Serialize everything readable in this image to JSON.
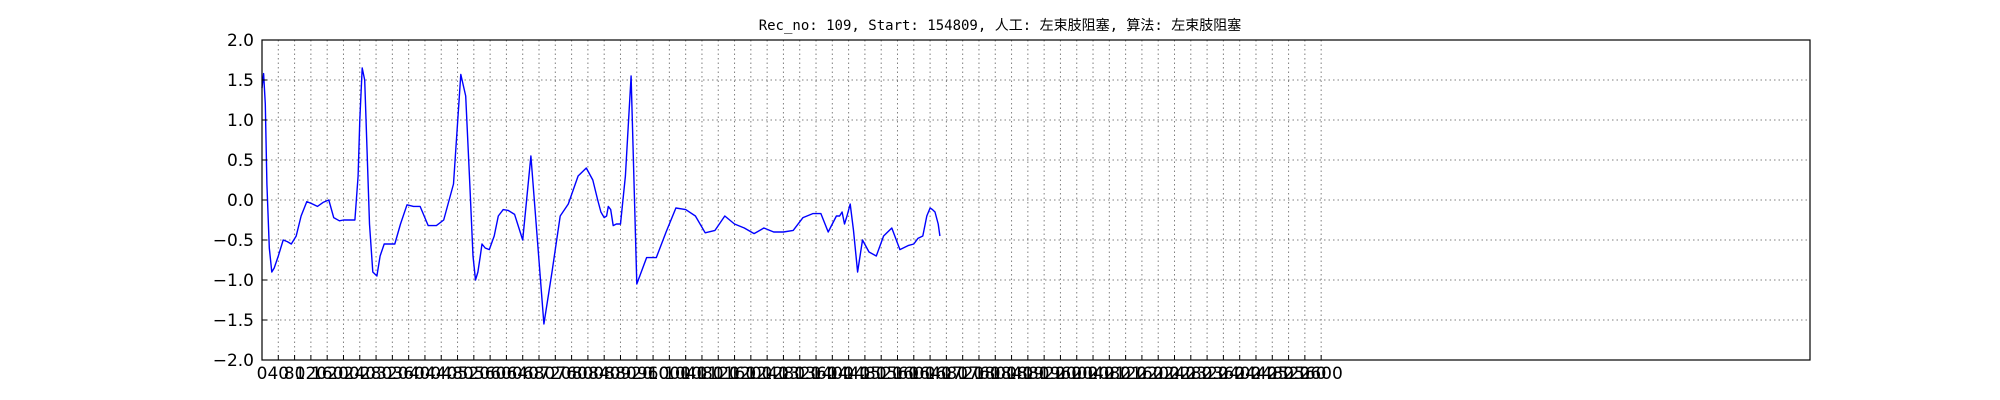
{
  "chart_data": {
    "type": "line",
    "title": "Rec_no: 109, Start: 154809, 人工: 左束肢阻塞, 算法: 左束肢阻塞",
    "xlabel": "",
    "ylabel": "",
    "xlim": [
      0,
      3800
    ],
    "ylim": [
      -2.0,
      2.0
    ],
    "yticks": [
      -2.0,
      -1.5,
      -1.0,
      -0.5,
      0.0,
      0.5,
      1.0,
      1.5,
      2.0
    ],
    "ytick_labels": [
      "−2.0",
      "−1.5",
      "−1.0",
      "−0.5",
      "0.0",
      "0.5",
      "1.0",
      "1.5",
      "2.0"
    ],
    "xticks": [
      0,
      40,
      80,
      120,
      160,
      200,
      240,
      280,
      320,
      360,
      400,
      440,
      480,
      520,
      560,
      600,
      640,
      680,
      720,
      760,
      800,
      840,
      880,
      920,
      960,
      1000,
      1040,
      1080,
      1120,
      1160,
      1200,
      1240,
      1280,
      1320,
      1360,
      1400,
      1440,
      1480,
      1520,
      1560,
      1600,
      1640,
      1680,
      1720,
      1760,
      1800,
      1840,
      1880,
      1920,
      1960,
      2000,
      2040,
      2080,
      2120,
      2160,
      2200,
      2240,
      2280,
      2320,
      2360,
      2400,
      2440,
      2480,
      2520,
      2560,
      2600
    ],
    "xtick_labels": [
      "0",
      "40",
      "80",
      "120",
      "160",
      "200",
      "240",
      "280",
      "320",
      "360",
      "400",
      "440",
      "480",
      "520",
      "560",
      "600",
      "640",
      "680",
      "720",
      "760",
      "800",
      "840",
      "880",
      "920",
      "960",
      "1000",
      "1040",
      "1080",
      "1120",
      "1160",
      "1200",
      "1240",
      "1280",
      "1320",
      "1360",
      "1400",
      "1440",
      "1480",
      "1520",
      "1560",
      "1600",
      "1640",
      "1680",
      "1720",
      "1760",
      "1800",
      "1840",
      "1880",
      "1920",
      "1960",
      "2000",
      "2040",
      "2080",
      "2120",
      "2160",
      "2200",
      "2240",
      "2280",
      "2320",
      "2360",
      "2400",
      "2440",
      "2480",
      "2520",
      "2560",
      "2600"
    ],
    "grid": true,
    "series": [
      {
        "color": "#0000ff",
        "x": [
          0,
          4,
          8,
          12,
          18,
          24,
          30,
          40,
          52,
          62,
          72,
          84,
          96,
          110,
          124,
          136,
          150,
          164,
          176,
          190,
          200,
          214,
          228,
          236,
          240,
          246,
          252,
          258,
          264,
          272,
          282,
          290,
          300,
          312,
          326,
          340,
          356,
          372,
          388,
          408,
          428,
          446,
          470,
          488,
          500,
          510,
          518,
          524,
          530,
          536,
          540,
          548,
          558,
          570,
          580,
          592,
          604,
          620,
          640,
          660,
          676,
          692,
          712,
          732,
          752,
          776,
          796,
          812,
          824,
          832,
          840,
          846,
          850,
          856,
          862,
          870,
          880,
          892,
          906,
          920,
          944,
          968,
          992,
          1016,
          1040,
          1064,
          1088,
          1112,
          1136,
          1160,
          1184,
          1208,
          1232,
          1256,
          1280,
          1304,
          1328,
          1352,
          1372,
          1390,
          1410,
          1418,
          1424,
          1430,
          1436,
          1444,
          1452,
          1462,
          1474,
          1490,
          1508,
          1526,
          1546,
          1566,
          1586,
          1600,
          1610,
          1622,
          1632,
          1640,
          1646,
          1652,
          1660,
          1664
        ],
        "y": [
          1.4,
          1.58,
          1.2,
          0.2,
          -0.6,
          -0.9,
          -0.85,
          -0.7,
          -0.5,
          -0.52,
          -0.55,
          -0.45,
          -0.2,
          -0.02,
          -0.05,
          -0.08,
          -0.03,
          0.0,
          -0.22,
          -0.26,
          -0.25,
          -0.25,
          -0.25,
          0.3,
          1.0,
          1.65,
          1.5,
          0.6,
          -0.3,
          -0.9,
          -0.95,
          -0.7,
          -0.55,
          -0.55,
          -0.55,
          -0.3,
          -0.06,
          -0.08,
          -0.08,
          -0.32,
          -0.32,
          -0.25,
          0.2,
          1.57,
          1.3,
          0.2,
          -0.7,
          -1.0,
          -0.9,
          -0.7,
          -0.55,
          -0.6,
          -0.62,
          -0.45,
          -0.2,
          -0.12,
          -0.13,
          -0.18,
          -0.5,
          0.55,
          -0.5,
          -1.55,
          -0.9,
          -0.2,
          -0.05,
          0.3,
          0.4,
          0.25,
          0.0,
          -0.15,
          -0.22,
          -0.2,
          -0.08,
          -0.12,
          -0.32,
          -0.3,
          -0.3,
          0.3,
          1.55,
          -1.05,
          -0.72,
          -0.72,
          -0.4,
          -0.1,
          -0.12,
          -0.2,
          -0.41,
          -0.38,
          -0.2,
          -0.3,
          -0.35,
          -0.42,
          -0.35,
          -0.4,
          -0.4,
          -0.38,
          -0.22,
          -0.17,
          -0.17,
          -0.4,
          -0.2,
          -0.2,
          -0.15,
          -0.3,
          -0.2,
          -0.05,
          -0.38,
          -0.9,
          -0.5,
          -0.65,
          -0.7,
          -0.45,
          -0.35,
          -0.62,
          -0.57,
          -0.55,
          -0.48,
          -0.45,
          -0.2,
          -0.1,
          -0.12,
          -0.15,
          -0.3,
          -0.45
        ]
      }
    ]
  }
}
